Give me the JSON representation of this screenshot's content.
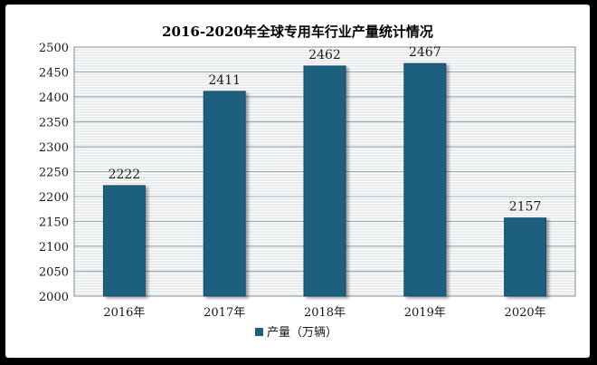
{
  "chart_data": {
    "type": "bar",
    "title": "2016-2020年全球专用车行业产量统计情况",
    "categories": [
      "2016年",
      "2017年",
      "2018年",
      "2019年",
      "2020年"
    ],
    "series": [
      {
        "name": "产量（万辆）",
        "values": [
          2222,
          2411,
          2462,
          2467,
          2157
        ]
      }
    ],
    "ylim": [
      2000,
      2500
    ],
    "yticks": [
      2000,
      2050,
      2100,
      2150,
      2200,
      2250,
      2300,
      2350,
      2400,
      2450,
      2500
    ],
    "xlabel": "",
    "ylabel": "",
    "grid": true,
    "legend_position": "bottom",
    "colors": {
      "bar": "#1d5f7e",
      "grid": "#9aa8b2",
      "plot_background": "#ffffff"
    }
  }
}
